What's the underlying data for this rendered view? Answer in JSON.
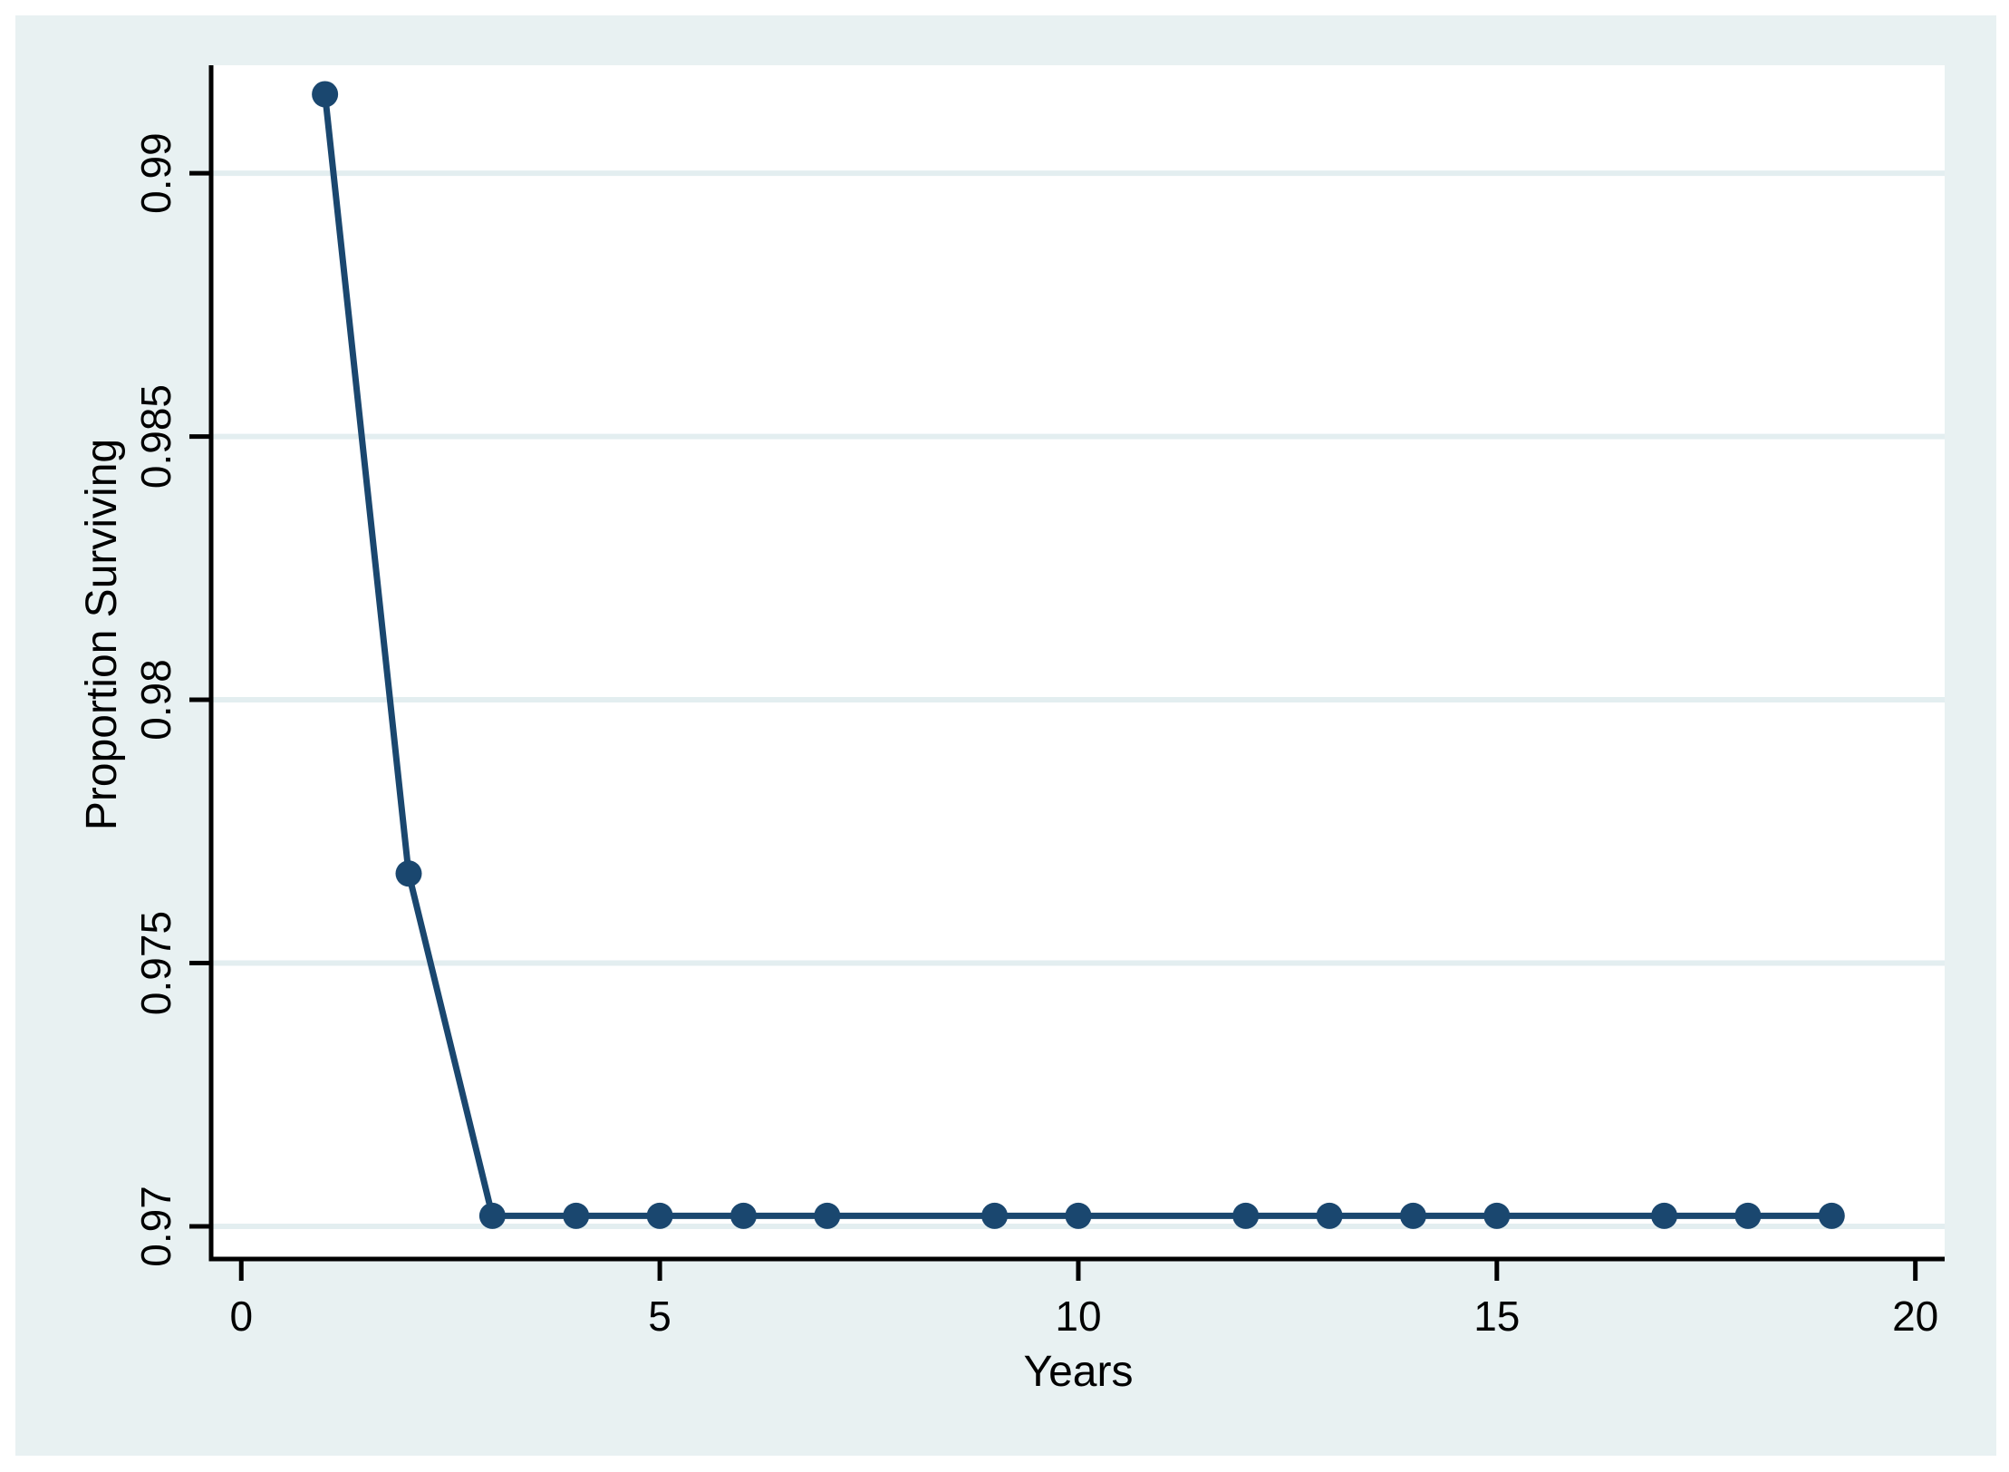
{
  "chart_data": {
    "type": "line",
    "title": "",
    "xlabel": "Years",
    "ylabel": "Proportion Surviving",
    "legend": "none",
    "grid": "horizontal-only",
    "xlim": [
      -0.36,
      20.35
    ],
    "ylim": [
      0.96938,
      0.99205
    ],
    "xticks": {
      "values": [
        0,
        5,
        10,
        15,
        20
      ],
      "labels": [
        "0",
        "5",
        "10",
        "15",
        "20"
      ]
    },
    "yticks": {
      "values": [
        0.97,
        0.975,
        0.98,
        0.985,
        0.99
      ],
      "labels": [
        "0.97",
        "0.975",
        "0.98",
        "0.985",
        "0.99"
      ]
    },
    "series": [
      {
        "name": "Proportion Surviving",
        "marker": "circle",
        "points": [
          [
            1,
            0.9915
          ],
          [
            2,
            0.9767
          ],
          [
            3,
            0.9702
          ],
          [
            4,
            0.9702
          ],
          [
            5,
            0.9702
          ],
          [
            6,
            0.9702
          ],
          [
            7,
            0.9702
          ],
          [
            9,
            0.9702
          ],
          [
            10,
            0.9702
          ],
          [
            12,
            0.9702
          ],
          [
            13,
            0.9702
          ],
          [
            14,
            0.9702
          ],
          [
            15,
            0.9702
          ],
          [
            17,
            0.9702
          ],
          [
            18,
            0.9702
          ],
          [
            19,
            0.9702
          ]
        ]
      }
    ],
    "colors": {
      "line": "#1a476f",
      "marker": "#1a476f",
      "graph_background": "#e8f1f2",
      "plot_background": "#ffffff",
      "gridline": "#e3eef0",
      "axis": "#000000",
      "text": "#000000",
      "outer_margin": "#ffffff"
    }
  }
}
